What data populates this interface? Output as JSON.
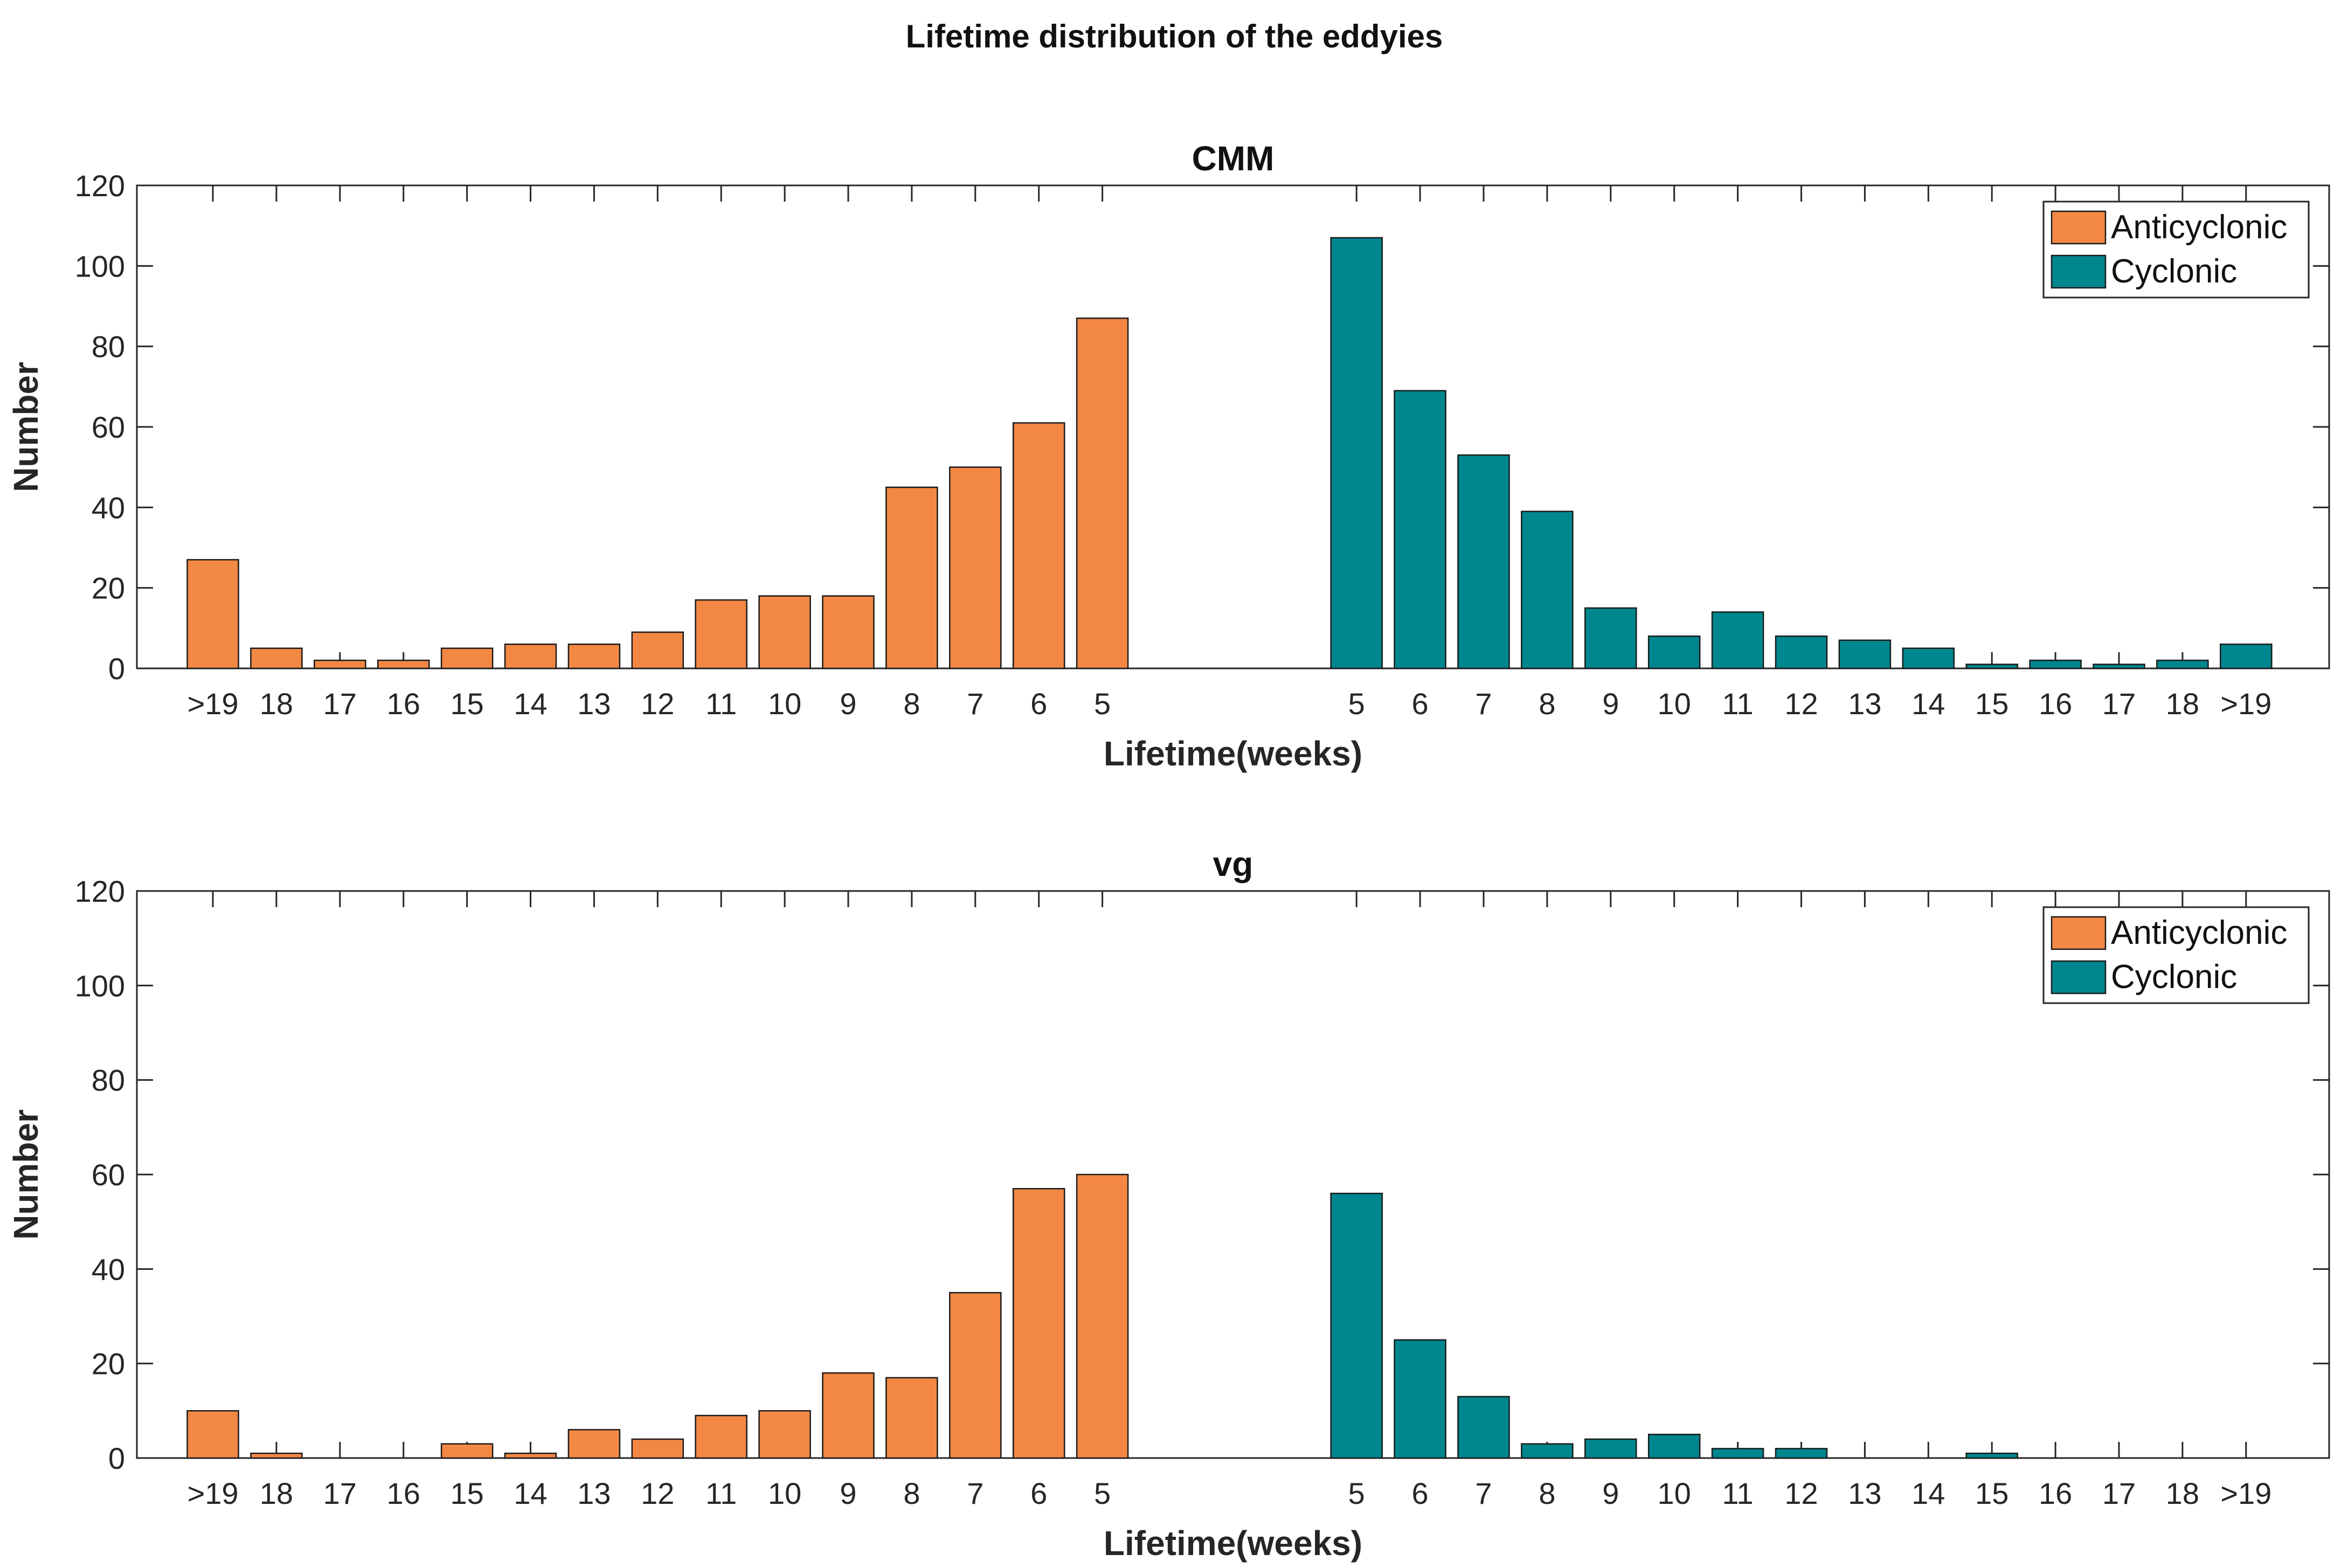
{
  "figure_title": "Lifetime distribution of the eddyies",
  "colors": {
    "anticyclonic": "#F28844",
    "cyclonic": "#00868E",
    "edge": "#1a1a1a",
    "axis": "#262626"
  },
  "chart_data": [
    {
      "type": "bar",
      "title": "CMM",
      "xlabel": "Lifetime(weeks)",
      "ylabel": "Number",
      "ylim": [
        0,
        120
      ],
      "yticks": [
        0,
        20,
        40,
        60,
        80,
        100,
        120
      ],
      "legend_position": "top-right",
      "series": [
        {
          "name": "Anticyclonic",
          "categories": [
            ">19",
            "18",
            "17",
            "16",
            "15",
            "14",
            "13",
            "12",
            "11",
            "10",
            "9",
            "8",
            "7",
            "6",
            "5"
          ],
          "values": [
            27,
            5,
            2,
            2,
            5,
            6,
            6,
            9,
            17,
            18,
            18,
            45,
            50,
            61,
            87
          ]
        },
        {
          "name": "Cyclonic",
          "categories": [
            "5",
            "6",
            "7",
            "8",
            "9",
            "10",
            "11",
            "12",
            "13",
            "14",
            "15",
            "16",
            "17",
            "18",
            ">19"
          ],
          "values": [
            107,
            69,
            53,
            39,
            15,
            8,
            14,
            8,
            7,
            5,
            1,
            2,
            1,
            2,
            6
          ]
        }
      ]
    },
    {
      "type": "bar",
      "title": "vg",
      "xlabel": "Lifetime(weeks)",
      "ylabel": "Number",
      "ylim": [
        0,
        120
      ],
      "yticks": [
        0,
        20,
        40,
        60,
        80,
        100,
        120
      ],
      "legend_position": "top-right",
      "series": [
        {
          "name": "Anticyclonic",
          "categories": [
            ">19",
            "18",
            "17",
            "16",
            "15",
            "14",
            "13",
            "12",
            "11",
            "10",
            "9",
            "8",
            "7",
            "6",
            "5"
          ],
          "values": [
            10,
            1,
            0,
            0,
            3,
            1,
            6,
            4,
            9,
            10,
            18,
            17,
            35,
            57,
            60
          ]
        },
        {
          "name": "Cyclonic",
          "categories": [
            "5",
            "6",
            "7",
            "8",
            "9",
            "10",
            "11",
            "12",
            "13",
            "14",
            "15",
            "16",
            "17",
            "18",
            ">19"
          ],
          "values": [
            56,
            25,
            13,
            3,
            4,
            5,
            2,
            2,
            0,
            0,
            1,
            0,
            0,
            0,
            0
          ]
        }
      ]
    }
  ]
}
